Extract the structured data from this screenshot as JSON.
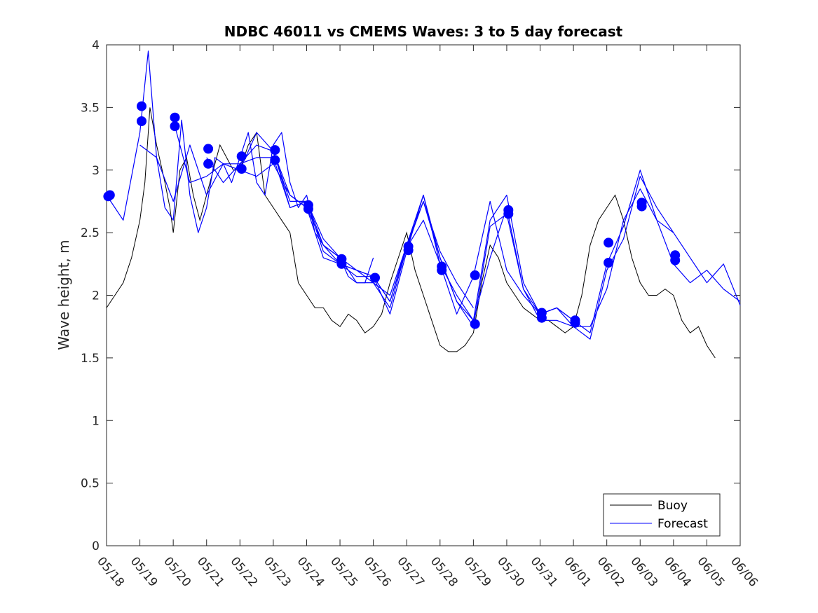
{
  "chart_data": {
    "type": "line",
    "title": "NDBC 46011 vs CMEMS Waves: 3 to 5 day forecast",
    "xlabel": "",
    "ylabel": "Wave height, m",
    "x_tick_labels": [
      "05/18",
      "05/19",
      "05/20",
      "05/21",
      "05/22",
      "05/23",
      "05/24",
      "05/25",
      "05/26",
      "05/27",
      "05/28",
      "05/29",
      "05/30",
      "05/31",
      "06/01",
      "06/02",
      "06/03",
      "06/04",
      "06/05",
      "06/06"
    ],
    "xlim_days": [
      0,
      19
    ],
    "ylim": [
      0,
      4
    ],
    "y_ticks": [
      0,
      0.5,
      1,
      1.5,
      2,
      2.5,
      3,
      3.5,
      4
    ],
    "y_tick_labels": [
      "0",
      "0.5",
      "1",
      "1.5",
      "2",
      "2.5",
      "3",
      "3.5",
      "4"
    ],
    "grid": false,
    "legend": {
      "position": "bottom-right",
      "entries": [
        {
          "label": "Buoy",
          "color": "#000000"
        },
        {
          "label": "Forecast",
          "color": "#0000ff"
        }
      ]
    },
    "buoy": {
      "name": "Buoy",
      "color": "#000000",
      "x_day": [
        0.0,
        0.25,
        0.5,
        0.75,
        1.0,
        1.15,
        1.3,
        1.5,
        1.75,
        1.9,
        2.0,
        2.2,
        2.4,
        2.6,
        2.8,
        3.0,
        3.2,
        3.4,
        3.6,
        3.8,
        4.0,
        4.25,
        4.5,
        4.75,
        5.0,
        5.25,
        5.5,
        5.75,
        6.0,
        6.25,
        6.5,
        6.75,
        7.0,
        7.25,
        7.5,
        7.75,
        8.0,
        8.25,
        8.5,
        8.75,
        9.0,
        9.25,
        9.5,
        9.75,
        10.0,
        10.25,
        10.5,
        10.75,
        11.0,
        11.25,
        11.5,
        11.75,
        12.0,
        12.25,
        12.5,
        12.75,
        13.0,
        13.25,
        13.5,
        13.75,
        14.0,
        14.25,
        14.5,
        14.75,
        15.0,
        15.25,
        15.5,
        15.75,
        16.0,
        16.25,
        16.5,
        16.75,
        17.0,
        17.25,
        17.5,
        17.75,
        18.0,
        18.25
      ],
      "values": [
        1.9,
        2.0,
        2.1,
        2.3,
        2.6,
        2.9,
        3.5,
        3.2,
        2.9,
        2.7,
        2.5,
        3.0,
        3.1,
        2.8,
        2.6,
        2.8,
        3.0,
        3.2,
        3.1,
        3.0,
        3.0,
        3.2,
        3.3,
        2.8,
        2.7,
        2.6,
        2.5,
        2.1,
        2.0,
        1.9,
        1.9,
        1.8,
        1.75,
        1.85,
        1.8,
        1.7,
        1.75,
        1.85,
        2.1,
        2.3,
        2.5,
        2.2,
        2.0,
        1.8,
        1.6,
        1.55,
        1.55,
        1.6,
        1.7,
        2.1,
        2.4,
        2.3,
        2.1,
        2.0,
        1.9,
        1.85,
        1.8,
        1.8,
        1.75,
        1.7,
        1.75,
        2.0,
        2.4,
        2.6,
        2.7,
        2.8,
        2.6,
        2.3,
        2.1,
        2.0,
        2.0,
        2.05,
        2.0,
        1.8,
        1.7,
        1.75,
        1.6,
        1.5
      ]
    },
    "forecast": {
      "name": "Forecast",
      "color": "#0000ff",
      "series": [
        {
          "x_day": [
            0.0,
            0.5,
            1.0,
            1.25,
            1.5,
            1.75,
            2.0,
            2.25,
            2.5,
            2.75,
            3.0,
            3.25,
            3.5,
            3.75,
            4.0,
            4.25,
            4.5,
            4.75,
            5.0,
            5.25,
            5.5,
            5.75,
            6.0,
            6.25,
            6.5,
            6.75,
            7.0,
            7.25,
            7.5,
            7.75,
            8.0
          ],
          "values": [
            2.8,
            2.6,
            3.3,
            3.95,
            3.1,
            2.7,
            2.6,
            3.4,
            2.8,
            2.5,
            2.7,
            3.1,
            3.05,
            2.9,
            3.1,
            3.3,
            2.9,
            2.8,
            3.2,
            3.3,
            2.9,
            2.7,
            2.8,
            2.5,
            2.4,
            2.35,
            2.3,
            2.15,
            2.1,
            2.1,
            2.3
          ]
        },
        {
          "x_day": [
            1.0,
            1.5,
            2.0,
            2.5,
            3.0,
            3.5,
            4.0,
            4.5,
            5.0,
            5.5,
            6.0,
            6.5,
            7.0,
            7.5,
            8.0,
            8.5,
            9.0,
            9.5,
            10.0,
            10.5,
            11.0
          ],
          "values": [
            3.2,
            3.1,
            2.75,
            3.2,
            2.8,
            3.05,
            3.0,
            3.3,
            3.15,
            2.8,
            2.7,
            2.4,
            2.25,
            2.2,
            2.1,
            2.0,
            2.4,
            2.75,
            2.35,
            2.1,
            1.9
          ]
        },
        {
          "x_day": [
            2.0,
            2.5,
            3.0,
            3.5,
            4.0,
            4.5,
            5.0,
            5.5,
            6.0,
            6.5,
            7.0,
            7.5,
            8.0,
            8.5,
            9.0,
            9.5,
            10.0,
            10.5,
            11.0,
            11.5,
            12.0,
            12.5,
            13.0,
            13.5,
            14.0
          ],
          "values": [
            3.4,
            2.9,
            2.95,
            3.05,
            3.05,
            3.1,
            3.1,
            2.7,
            2.75,
            2.35,
            2.25,
            2.15,
            2.15,
            1.95,
            2.38,
            2.6,
            2.25,
            1.85,
            2.15,
            2.75,
            2.2,
            2.0,
            1.85,
            1.9,
            1.8
          ]
        },
        {
          "x_day": [
            3.0,
            3.5,
            4.0,
            4.5,
            5.0,
            5.5,
            6.0,
            6.5,
            7.0,
            7.5,
            8.0,
            8.5,
            9.0,
            9.5,
            10.0,
            10.5,
            11.0,
            11.5,
            12.0,
            12.5,
            13.0,
            13.5,
            14.0,
            14.5,
            15.0,
            15.5,
            16.0,
            16.5,
            17.0
          ],
          "values": [
            3.1,
            2.9,
            3.05,
            3.2,
            3.15,
            2.75,
            2.75,
            2.45,
            2.3,
            2.1,
            2.1,
            1.9,
            2.38,
            2.75,
            2.3,
            1.95,
            1.75,
            2.55,
            2.65,
            2.05,
            1.85,
            1.9,
            1.75,
            1.75,
            2.05,
            2.6,
            2.85,
            2.6,
            2.5
          ]
        },
        {
          "x_day": [
            4.0,
            4.5,
            5.0,
            5.5,
            6.0,
            6.5,
            7.0,
            7.5,
            8.0,
            8.5,
            9.0,
            9.5,
            10.0,
            10.5,
            11.0,
            11.5,
            12.0,
            12.5,
            13.0,
            13.5,
            14.0,
            14.5,
            15.0,
            15.5,
            16.0,
            16.5,
            17.0,
            17.5,
            18.0,
            18.5,
            19.0
          ],
          "values": [
            3.0,
            2.95,
            3.05,
            2.8,
            2.7,
            2.3,
            2.25,
            2.2,
            2.15,
            1.85,
            2.35,
            2.8,
            2.25,
            2.0,
            1.8,
            2.3,
            2.7,
            2.05,
            1.8,
            1.8,
            1.75,
            1.65,
            2.2,
            2.45,
            2.95,
            2.7,
            2.5,
            2.3,
            2.1,
            2.25,
            1.92
          ]
        },
        {
          "x_day": [
            5.0,
            5.5,
            6.0,
            6.5,
            7.0,
            7.5,
            8.0,
            8.5,
            9.0,
            9.5,
            10.0,
            10.5,
            11.0,
            11.5,
            12.0,
            12.5,
            13.0,
            13.5,
            14.0,
            14.5,
            15.0,
            15.5,
            16.0,
            16.5,
            17.0,
            17.5,
            18.0,
            18.5,
            19.0
          ],
          "values": [
            3.16,
            2.7,
            2.75,
            2.4,
            2.3,
            2.2,
            2.15,
            1.95,
            2.4,
            2.8,
            2.3,
            1.95,
            1.8,
            2.6,
            2.8,
            2.1,
            1.85,
            1.9,
            1.8,
            1.7,
            2.25,
            2.55,
            3.0,
            2.6,
            2.25,
            2.1,
            2.2,
            2.05,
            1.95
          ]
        }
      ]
    },
    "forecast_markers": {
      "color": "#0000ff",
      "x_day": [
        0.05,
        0.1,
        1.05,
        1.05,
        2.05,
        2.05,
        3.05,
        3.05,
        4.05,
        4.05,
        5.05,
        5.05,
        6.05,
        6.05,
        7.05,
        7.05,
        8.05,
        9.05,
        9.05,
        10.05,
        10.05,
        11.05,
        11.05,
        12.05,
        12.05,
        13.05,
        13.05,
        14.05,
        14.05,
        15.05,
        15.05,
        16.05,
        16.05,
        17.05,
        17.05
      ],
      "values": [
        2.79,
        2.8,
        3.51,
        3.39,
        3.42,
        3.35,
        3.17,
        3.05,
        3.11,
        3.01,
        3.16,
        3.08,
        2.72,
        2.69,
        2.29,
        2.25,
        2.14,
        2.39,
        2.36,
        2.23,
        2.2,
        2.16,
        1.77,
        2.68,
        2.65,
        1.86,
        1.82,
        1.8,
        1.78,
        2.42,
        2.26,
        2.74,
        2.71,
        2.32,
        2.28
      ]
    }
  }
}
